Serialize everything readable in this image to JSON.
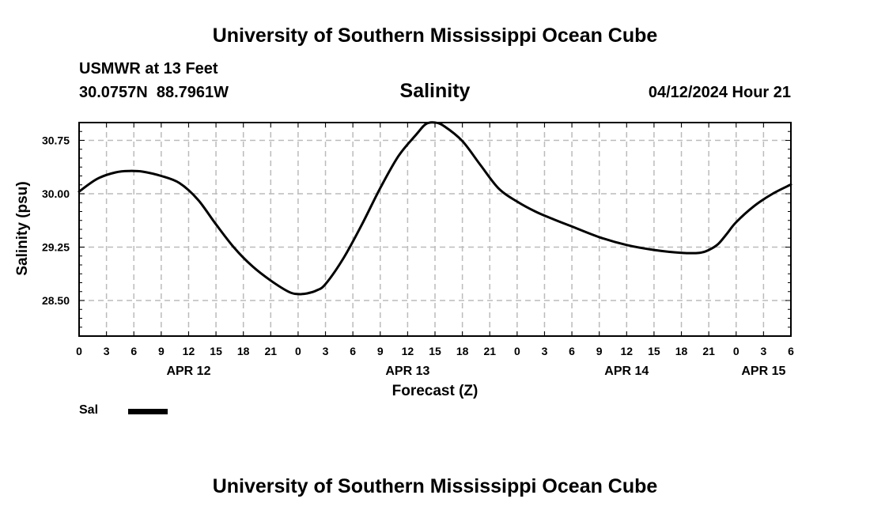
{
  "header": {
    "title": "University of Southern Mississippi Ocean Cube",
    "station": "USMWR at 13 Feet",
    "coordinates": "30.0757N  88.7961W",
    "variable": "Salinity",
    "timestamp": "04/12/2024 Hour 21"
  },
  "footer": {
    "title": "University of Southern Mississippi Ocean Cube"
  },
  "legend": {
    "label": "Sal"
  },
  "chart_data": {
    "type": "line",
    "title": "Salinity",
    "xlabel": "Forecast (Z)",
    "ylabel": "Salinity (psu)",
    "x_unit": "hours since APR 12 00Z",
    "xlim": [
      0,
      78
    ],
    "ylim": [
      28.0,
      31.0
    ],
    "x_ticks": [
      {
        "x": 0,
        "label": "0"
      },
      {
        "x": 3,
        "label": "3"
      },
      {
        "x": 6,
        "label": "6"
      },
      {
        "x": 9,
        "label": "9"
      },
      {
        "x": 12,
        "label": "12"
      },
      {
        "x": 15,
        "label": "15"
      },
      {
        "x": 18,
        "label": "18"
      },
      {
        "x": 21,
        "label": "21"
      },
      {
        "x": 24,
        "label": "0"
      },
      {
        "x": 27,
        "label": "3"
      },
      {
        "x": 30,
        "label": "6"
      },
      {
        "x": 33,
        "label": "9"
      },
      {
        "x": 36,
        "label": "12"
      },
      {
        "x": 39,
        "label": "15"
      },
      {
        "x": 42,
        "label": "18"
      },
      {
        "x": 45,
        "label": "21"
      },
      {
        "x": 48,
        "label": "0"
      },
      {
        "x": 51,
        "label": "3"
      },
      {
        "x": 54,
        "label": "6"
      },
      {
        "x": 57,
        "label": "9"
      },
      {
        "x": 60,
        "label": "12"
      },
      {
        "x": 63,
        "label": "15"
      },
      {
        "x": 66,
        "label": "18"
      },
      {
        "x": 69,
        "label": "21"
      },
      {
        "x": 72,
        "label": "0"
      },
      {
        "x": 75,
        "label": "3"
      },
      {
        "x": 78,
        "label": "6"
      }
    ],
    "date_labels": [
      {
        "x": 12,
        "label": "APR 12"
      },
      {
        "x": 36,
        "label": "APR 13"
      },
      {
        "x": 60,
        "label": "APR 14"
      },
      {
        "x": 75,
        "label": "APR 15"
      }
    ],
    "y_ticks": [
      {
        "y": 28.5,
        "label": "28.50"
      },
      {
        "y": 29.25,
        "label": "29.25"
      },
      {
        "y": 30.0,
        "label": "30.00"
      },
      {
        "y": 30.75,
        "label": "30.75"
      }
    ],
    "grid": true,
    "series": [
      {
        "name": "Sal",
        "color": "#000000",
        "x": [
          0,
          2,
          4,
          5.5,
          7,
          9,
          11,
          13,
          15,
          17,
          19,
          21,
          23,
          24,
          25,
          26,
          27,
          29,
          31,
          33,
          35,
          37,
          38,
          39,
          40,
          42,
          44,
          46,
          48,
          50,
          52,
          54,
          57,
          60,
          63,
          66,
          68,
          69,
          70,
          71,
          72,
          74,
          76,
          78
        ],
        "values": [
          30.03,
          30.21,
          30.3,
          30.32,
          30.31,
          30.25,
          30.15,
          29.92,
          29.57,
          29.24,
          28.98,
          28.78,
          28.62,
          28.59,
          28.6,
          28.64,
          28.73,
          29.1,
          29.57,
          30.08,
          30.53,
          30.84,
          30.98,
          31.0,
          30.95,
          30.74,
          30.4,
          30.07,
          29.89,
          29.75,
          29.64,
          29.54,
          29.39,
          29.28,
          29.21,
          29.17,
          29.17,
          29.21,
          29.29,
          29.44,
          29.6,
          29.83,
          30.0,
          30.13
        ]
      }
    ]
  }
}
